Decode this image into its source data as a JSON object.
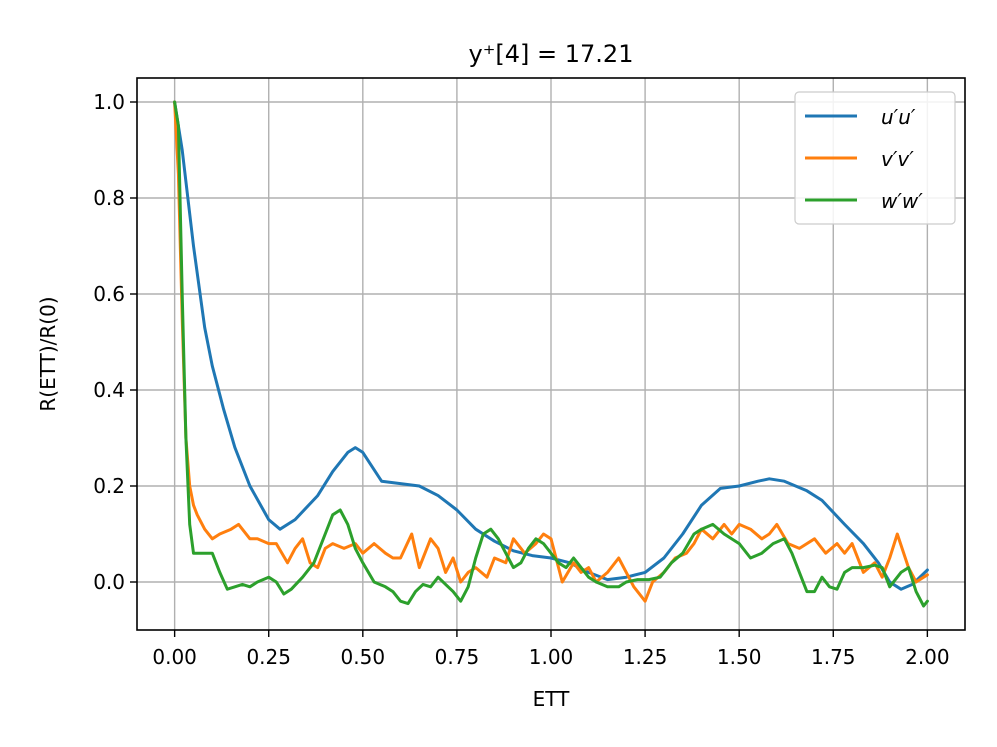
{
  "chart_data": {
    "type": "line",
    "title": "y⁺[4] = 17.21",
    "xlabel": "ETT",
    "ylabel": "R(ETT)/R(0)",
    "xlim": [
      -0.1,
      2.1
    ],
    "ylim": [
      -0.1,
      1.05
    ],
    "xticks": [
      0.0,
      0.25,
      0.5,
      0.75,
      1.0,
      1.25,
      1.5,
      1.75,
      2.0
    ],
    "xtick_labels": [
      "0.00",
      "0.25",
      "0.50",
      "0.75",
      "1.00",
      "1.25",
      "1.50",
      "1.75",
      "2.00"
    ],
    "yticks": [
      0.0,
      0.2,
      0.4,
      0.6,
      0.8,
      1.0
    ],
    "ytick_labels": [
      "0.0",
      "0.2",
      "0.4",
      "0.6",
      "0.8",
      "1.0"
    ],
    "grid": true,
    "legend_position": "top-right",
    "series": [
      {
        "name": "u′u′",
        "color": "#1f77b4",
        "x": [
          0.0,
          0.02,
          0.05,
          0.08,
          0.1,
          0.13,
          0.16,
          0.2,
          0.25,
          0.28,
          0.32,
          0.38,
          0.42,
          0.46,
          0.48,
          0.5,
          0.55,
          0.6,
          0.65,
          0.7,
          0.75,
          0.8,
          0.85,
          0.9,
          0.95,
          1.0,
          1.05,
          1.1,
          1.15,
          1.2,
          1.25,
          1.3,
          1.35,
          1.4,
          1.45,
          1.5,
          1.55,
          1.58,
          1.62,
          1.68,
          1.72,
          1.78,
          1.83,
          1.87,
          1.9,
          1.93,
          1.96,
          2.0
        ],
        "y": [
          1.0,
          0.9,
          0.7,
          0.53,
          0.45,
          0.36,
          0.28,
          0.2,
          0.13,
          0.11,
          0.13,
          0.18,
          0.23,
          0.27,
          0.28,
          0.27,
          0.21,
          0.205,
          0.2,
          0.18,
          0.15,
          0.11,
          0.085,
          0.065,
          0.055,
          0.05,
          0.04,
          0.02,
          0.005,
          0.01,
          0.02,
          0.05,
          0.1,
          0.16,
          0.195,
          0.2,
          0.21,
          0.215,
          0.21,
          0.19,
          0.17,
          0.12,
          0.08,
          0.04,
          0.0,
          -0.015,
          -0.005,
          0.025
        ]
      },
      {
        "name": "v′v′",
        "color": "#ff7f0e",
        "x": [
          0.0,
          0.01,
          0.02,
          0.03,
          0.04,
          0.05,
          0.06,
          0.08,
          0.1,
          0.12,
          0.15,
          0.17,
          0.2,
          0.22,
          0.25,
          0.27,
          0.3,
          0.32,
          0.34,
          0.36,
          0.38,
          0.4,
          0.42,
          0.45,
          0.48,
          0.5,
          0.53,
          0.56,
          0.58,
          0.6,
          0.63,
          0.65,
          0.68,
          0.7,
          0.72,
          0.74,
          0.76,
          0.78,
          0.8,
          0.83,
          0.85,
          0.88,
          0.9,
          0.93,
          0.96,
          0.98,
          1.0,
          1.03,
          1.06,
          1.08,
          1.1,
          1.12,
          1.15,
          1.18,
          1.2,
          1.22,
          1.25,
          1.27,
          1.3,
          1.33,
          1.36,
          1.38,
          1.4,
          1.43,
          1.46,
          1.48,
          1.5,
          1.53,
          1.56,
          1.58,
          1.6,
          1.63,
          1.66,
          1.68,
          1.7,
          1.73,
          1.76,
          1.78,
          1.8,
          1.83,
          1.86,
          1.88,
          1.9,
          1.92,
          1.95,
          1.97,
          2.0
        ],
        "y": [
          1.0,
          0.85,
          0.55,
          0.3,
          0.2,
          0.16,
          0.14,
          0.11,
          0.09,
          0.1,
          0.11,
          0.12,
          0.09,
          0.09,
          0.08,
          0.08,
          0.04,
          0.07,
          0.09,
          0.04,
          0.03,
          0.07,
          0.08,
          0.07,
          0.08,
          0.06,
          0.08,
          0.06,
          0.05,
          0.05,
          0.1,
          0.03,
          0.09,
          0.07,
          0.02,
          0.05,
          0.0,
          0.02,
          0.03,
          0.01,
          0.05,
          0.04,
          0.09,
          0.06,
          0.08,
          0.1,
          0.09,
          0.0,
          0.04,
          0.02,
          0.03,
          0.0,
          0.02,
          0.05,
          0.02,
          -0.01,
          -0.04,
          0.0,
          0.02,
          0.05,
          0.06,
          0.08,
          0.11,
          0.09,
          0.12,
          0.1,
          0.12,
          0.11,
          0.09,
          0.1,
          0.12,
          0.08,
          0.07,
          0.08,
          0.09,
          0.06,
          0.08,
          0.06,
          0.08,
          0.02,
          0.04,
          0.01,
          0.05,
          0.1,
          0.03,
          0.0,
          0.015
        ]
      },
      {
        "name": "w′w′",
        "color": "#2ca02c",
        "x": [
          0.0,
          0.01,
          0.02,
          0.03,
          0.04,
          0.05,
          0.06,
          0.08,
          0.1,
          0.12,
          0.14,
          0.16,
          0.18,
          0.2,
          0.22,
          0.25,
          0.27,
          0.29,
          0.31,
          0.34,
          0.37,
          0.4,
          0.42,
          0.44,
          0.46,
          0.48,
          0.5,
          0.53,
          0.56,
          0.58,
          0.6,
          0.62,
          0.64,
          0.66,
          0.68,
          0.7,
          0.72,
          0.74,
          0.76,
          0.78,
          0.8,
          0.82,
          0.84,
          0.86,
          0.88,
          0.9,
          0.92,
          0.94,
          0.96,
          0.98,
          1.0,
          1.02,
          1.04,
          1.06,
          1.08,
          1.1,
          1.12,
          1.15,
          1.18,
          1.2,
          1.23,
          1.26,
          1.29,
          1.32,
          1.35,
          1.38,
          1.4,
          1.43,
          1.46,
          1.5,
          1.53,
          1.56,
          1.59,
          1.62,
          1.64,
          1.66,
          1.68,
          1.7,
          1.72,
          1.74,
          1.76,
          1.78,
          1.8,
          1.83,
          1.86,
          1.88,
          1.9,
          1.93,
          1.95,
          1.97,
          1.99,
          2.0
        ],
        "y": [
          1.0,
          0.95,
          0.6,
          0.3,
          0.12,
          0.06,
          0.06,
          0.06,
          0.06,
          0.02,
          -0.015,
          -0.01,
          -0.005,
          -0.01,
          0.0,
          0.01,
          0.0,
          -0.025,
          -0.015,
          0.01,
          0.04,
          0.1,
          0.14,
          0.15,
          0.12,
          0.07,
          0.04,
          0.0,
          -0.01,
          -0.02,
          -0.04,
          -0.045,
          -0.02,
          -0.005,
          -0.01,
          0.01,
          -0.005,
          -0.02,
          -0.04,
          -0.01,
          0.05,
          0.1,
          0.11,
          0.09,
          0.06,
          0.03,
          0.04,
          0.07,
          0.09,
          0.08,
          0.06,
          0.04,
          0.03,
          0.05,
          0.03,
          0.01,
          0.0,
          -0.01,
          -0.01,
          0.0,
          0.005,
          0.005,
          0.01,
          0.04,
          0.06,
          0.1,
          0.11,
          0.12,
          0.1,
          0.08,
          0.05,
          0.06,
          0.08,
          0.09,
          0.06,
          0.02,
          -0.02,
          -0.02,
          0.01,
          -0.01,
          -0.015,
          0.02,
          0.03,
          0.03,
          0.035,
          0.03,
          -0.01,
          0.02,
          0.03,
          -0.02,
          -0.05,
          -0.04
        ]
      }
    ]
  }
}
